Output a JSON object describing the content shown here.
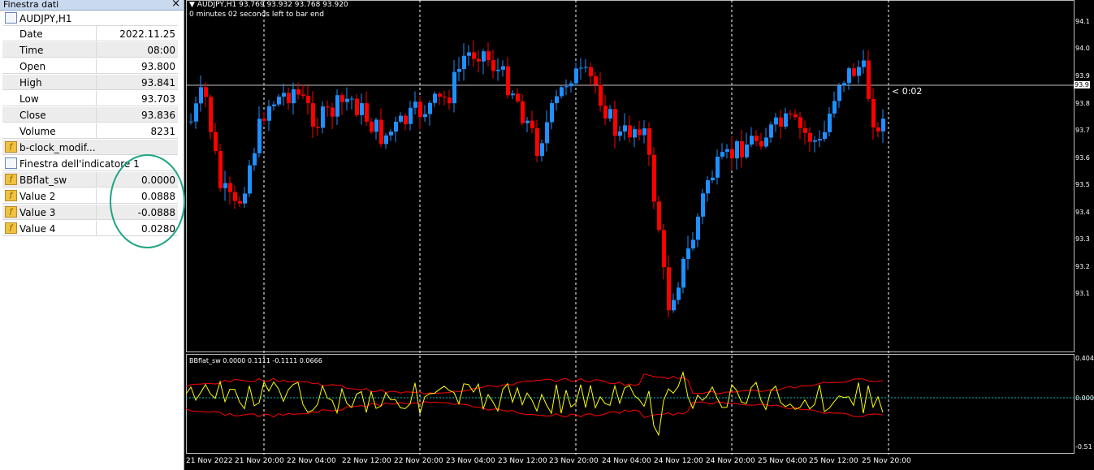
{
  "data_window": {
    "title": "Finestra dati",
    "close_glyph": "×",
    "symbol": "AUDJPY,H1",
    "fields": [
      {
        "label": "Date",
        "value": "2022.11.25"
      },
      {
        "label": "Time",
        "value": "08:00"
      },
      {
        "label": "Open",
        "value": "93.800"
      },
      {
        "label": "High",
        "value": "93.841"
      },
      {
        "label": "Low",
        "value": "93.703"
      },
      {
        "label": "Close",
        "value": "93.836"
      },
      {
        "label": "Volume",
        "value": "8231"
      }
    ],
    "indicator_main": "b-clock_modif...",
    "indicator_window": "Finestra dell'indicatore 1",
    "indicator_values": [
      {
        "label": "BBflat_sw",
        "value": "0.0000"
      },
      {
        "label": "Value 2",
        "value": "0.0888"
      },
      {
        "label": "Value 3",
        "value": "-0.0888"
      },
      {
        "label": "Value 4",
        "value": "0.0280"
      }
    ]
  },
  "chart": {
    "header_symbol": "AUDJPY,H1",
    "header_ohlc": "93.769 93.932 93.768 93.920",
    "timer_text": "0 minutes 02 seconds left to bar end",
    "countdown": "< 0:02",
    "current_price_label": "93.9",
    "price_ticks": [
      "94.1",
      "94.0",
      "93.9",
      "93.8",
      "93.7",
      "93.6",
      "93.5",
      "93.4",
      "93.3",
      "93.2",
      "93.1"
    ],
    "indicator_header": "BBflat_sw 0.0000 0.1111 -0.1111 0.0666",
    "indicator_ticks": [
      "0.404",
      "0.000",
      "-0.51"
    ],
    "time_ticks": [
      "21 Nov 2022",
      "21 Nov 20:00",
      "22 Nov 04:00",
      "22 Nov 12:00",
      "22 Nov 20:00",
      "23 Nov 04:00",
      "23 Nov 12:00",
      "23 Nov 20:00",
      "24 Nov 04:00",
      "24 Nov 12:00",
      "24 Nov 20:00",
      "25 Nov 04:00",
      "25 Nov 12:00",
      "25 Nov 20:00"
    ],
    "colors": {
      "bull": "#1e90ff",
      "bear": "#ff0000",
      "signal": "#ffff00",
      "bands": "#ff0000",
      "zero_line": "#00bfbf",
      "grid": "#ffffff"
    }
  }
}
